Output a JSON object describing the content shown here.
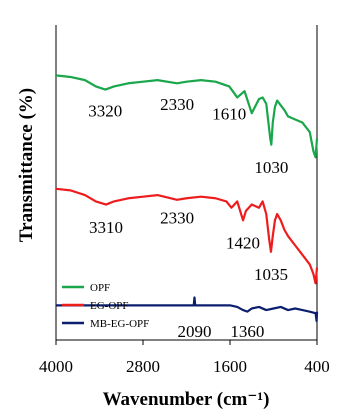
{
  "chart_data": {
    "type": "line",
    "xlabel": "Wavenumber (cm⁻¹)",
    "ylabel": "Transmittance (%)",
    "xlim": [
      4000,
      400
    ],
    "xticks": [
      "4000",
      "2800",
      "1600",
      "400"
    ],
    "xtick_values": [
      4000,
      2800,
      1600,
      400
    ],
    "legend_position": "bottom-left",
    "grid": false,
    "series": [
      {
        "name": "OPF",
        "color": "#1aa64a",
        "x": [
          4000,
          3800,
          3600,
          3450,
          3320,
          3200,
          3000,
          2800,
          2600,
          2330,
          2200,
          2000,
          1800,
          1610,
          1500,
          1400,
          1300,
          1200,
          1150,
          1100,
          1060,
          1045,
          1030,
          1010,
          980,
          950,
          900,
          850,
          800,
          700,
          600,
          500,
          450,
          420,
          400
        ],
        "y": [
          84,
          83.5,
          82.5,
          80.5,
          79.5,
          80.5,
          81.5,
          82,
          82.5,
          81.5,
          82,
          82.5,
          82,
          80.5,
          77,
          79,
          72,
          76.5,
          77,
          75,
          67,
          64,
          62,
          69,
          74,
          76,
          74.5,
          73,
          71,
          70,
          69,
          66,
          60,
          58,
          64
        ]
      },
      {
        "name": "EG-OPF",
        "color": "#ee1c1c",
        "x": [
          4000,
          3800,
          3600,
          3450,
          3310,
          3200,
          3000,
          2800,
          2600,
          2330,
          2200,
          2000,
          1800,
          1650,
          1580,
          1500,
          1420,
          1380,
          1300,
          1200,
          1150,
          1100,
          1060,
          1035,
          1010,
          980,
          950,
          900,
          850,
          800,
          700,
          600,
          500,
          450,
          420,
          400
        ],
        "y": [
          48,
          47.5,
          46,
          44,
          43,
          44,
          45,
          45.5,
          46,
          44.5,
          45,
          45.5,
          45,
          44,
          42,
          44,
          38,
          41,
          43,
          42,
          44,
          40,
          32,
          28,
          33,
          38,
          40,
          38,
          35,
          33,
          30,
          27,
          24,
          21,
          18,
          23
        ]
      },
      {
        "name": "MB-EG-OPF",
        "color": "#0b1f6e",
        "x": [
          4000,
          3600,
          3200,
          2800,
          2400,
          2200,
          2100,
          2090,
          2080,
          2000,
          1800,
          1600,
          1500,
          1420,
          1360,
          1300,
          1200,
          1100,
          1000,
          900,
          800,
          700,
          600,
          500,
          420,
          405,
          400
        ],
        "y": [
          11,
          11,
          11,
          11,
          11,
          11,
          11,
          13.5,
          11,
          11,
          11,
          11,
          10.5,
          9.5,
          9,
          10,
          10.5,
          9.5,
          10,
          10.5,
          9.5,
          10,
          9.5,
          9,
          8.5,
          6,
          9
        ]
      }
    ],
    "annotations": [
      {
        "text": "3320",
        "x": 3320,
        "y": 71
      },
      {
        "text": "2330",
        "x": 2330,
        "y": 73
      },
      {
        "text": "1610",
        "x": 1610,
        "y": 70
      },
      {
        "text": "1030",
        "x": 1030,
        "y": 53
      },
      {
        "text": "3310",
        "x": 3310,
        "y": 34
      },
      {
        "text": "2330",
        "x": 2330,
        "y": 37
      },
      {
        "text": "1420",
        "x": 1420,
        "y": 29
      },
      {
        "text": "1035",
        "x": 1035,
        "y": 19
      },
      {
        "text": "2090",
        "x": 2090,
        "y": 1
      },
      {
        "text": "1360",
        "x": 1360,
        "y": 1
      }
    ]
  }
}
